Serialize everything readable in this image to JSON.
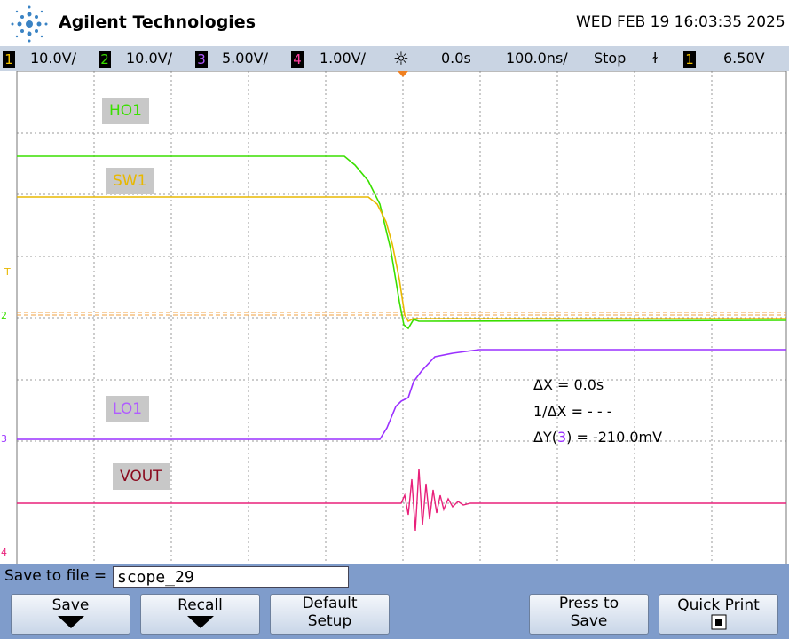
{
  "header": {
    "brand": "Agilent Technologies",
    "datetime": "WED FEB 19 16:03:35 2025"
  },
  "status_bar": {
    "channels": [
      {
        "number": "1",
        "scale": "10.0V/"
      },
      {
        "number": "2",
        "scale": "10.0V/"
      },
      {
        "number": "3",
        "scale": "5.00V/"
      },
      {
        "number": "4",
        "scale": "1.00V/"
      }
    ],
    "delay": "0.0s",
    "timebase": "100.0ns/",
    "run_state": "Stop",
    "trigger_source": "1",
    "trigger_level": "6.50V"
  },
  "markers": {
    "trigger": "T",
    "ch2": "2",
    "ch3": "3",
    "ch4": "4"
  },
  "trace_labels": {
    "ho1": "HO1",
    "sw1": "SW1",
    "lo1": "LO1",
    "vout": "VOUT"
  },
  "measurements": {
    "delta_x": "ΔX = 0.0s",
    "inverse_delta_x": "1/ΔX = - - -",
    "delta_y_prefix": "ΔY(",
    "delta_y_channel": "3",
    "delta_y_suffix": ") = -210.0mV"
  },
  "softkeys": {
    "save_to_file_label": "Save to file =",
    "file_name": "scope_29",
    "buttons": [
      "Save",
      "Recall",
      "Default Setup",
      "Press to Save",
      "Quick Print"
    ]
  }
}
